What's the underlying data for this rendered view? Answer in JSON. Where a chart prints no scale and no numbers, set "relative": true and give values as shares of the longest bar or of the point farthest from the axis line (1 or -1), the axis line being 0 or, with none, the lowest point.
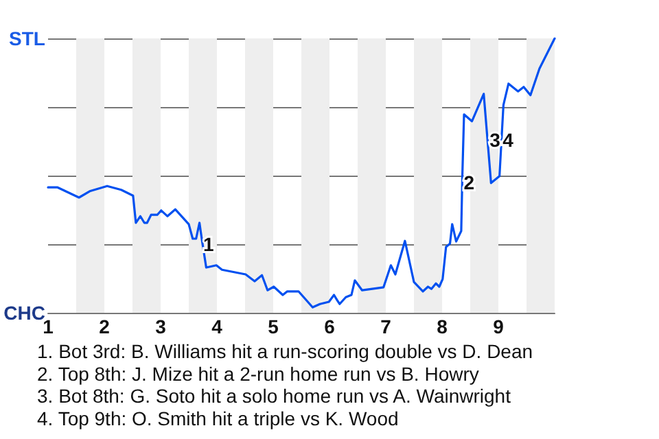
{
  "chart_data": {
    "type": "line",
    "x": [
      1.0,
      1.17,
      1.55,
      1.74,
      2.05,
      2.3,
      2.51,
      2.56,
      2.64,
      2.71,
      2.76,
      2.83,
      2.94,
      3.01,
      3.12,
      3.26,
      3.5,
      3.57,
      3.63,
      3.69,
      3.74,
      3.81,
      3.99,
      4.09,
      4.51,
      4.67,
      4.8,
      4.9,
      5.01,
      5.17,
      5.25,
      5.45,
      5.7,
      5.83,
      5.99,
      6.08,
      6.13,
      6.18,
      6.29,
      6.39,
      6.45,
      6.58,
      6.96,
      7.09,
      7.17,
      7.34,
      7.5,
      7.66,
      7.75,
      7.81,
      7.89,
      7.95,
      8.01,
      8.07,
      8.14,
      8.18,
      8.25,
      8.34,
      8.36,
      8.39,
      8.53,
      8.74,
      8.87,
      9.02,
      9.09,
      9.18,
      9.35,
      9.45,
      9.57,
      9.73,
      10.0
    ],
    "series": [
      {
        "color": "#0050f0",
        "values": [
          0.457,
          0.457,
          0.42,
          0.443,
          0.462,
          0.448,
          0.427,
          0.328,
          0.352,
          0.328,
          0.328,
          0.357,
          0.357,
          0.373,
          0.352,
          0.377,
          0.323,
          0.27,
          0.27,
          0.328,
          0.257,
          0.165,
          0.173,
          0.157,
          0.14,
          0.115,
          0.137,
          0.082,
          0.095,
          0.065,
          0.078,
          0.078,
          0.02,
          0.032,
          0.04,
          0.065,
          0.048,
          0.032,
          0.057,
          0.065,
          0.118,
          0.082,
          0.093,
          0.173,
          0.14,
          0.262,
          0.112,
          0.078,
          0.095,
          0.087,
          0.107,
          0.095,
          0.123,
          0.24,
          0.252,
          0.323,
          0.26,
          0.298,
          0.498,
          0.723,
          0.698,
          0.798,
          0.473,
          0.498,
          0.757,
          0.835,
          0.807,
          0.823,
          0.793,
          0.89,
          1
        ]
      }
    ],
    "relative": true,
    "xlim": [
      1,
      10
    ],
    "xticks": [
      1,
      2,
      3,
      4,
      5,
      6,
      7,
      8,
      9
    ],
    "grid": "y",
    "marker": "none",
    "bands": [
      {
        "axis": "x",
        "from": 1.5,
        "to": 2,
        "color": "#eeeeee"
      },
      {
        "axis": "x",
        "from": 2.5,
        "to": 3,
        "color": "#eeeeee"
      },
      {
        "axis": "x",
        "from": 3.5,
        "to": 4,
        "color": "#eeeeee"
      },
      {
        "axis": "x",
        "from": 4.5,
        "to": 5,
        "color": "#eeeeee"
      },
      {
        "axis": "x",
        "from": 5.5,
        "to": 6,
        "color": "#eeeeee"
      },
      {
        "axis": "x",
        "from": 6.5,
        "to": 7,
        "color": "#eeeeee"
      },
      {
        "axis": "x",
        "from": 7.5,
        "to": 8,
        "color": "#eeeeee"
      },
      {
        "axis": "x",
        "from": 8.5,
        "to": 9,
        "color": "#eeeeee"
      },
      {
        "axis": "x",
        "from": 9.5,
        "to": 10,
        "color": "#eeeeee"
      }
    ],
    "annotations": [
      "STL",
      "CHC",
      {
        "text": "1",
        "x": 3.85,
        "y": 0.25
      },
      {
        "text": "2",
        "x": 8.48,
        "y": 0.475
      },
      {
        "text": "3",
        "x": 8.94,
        "y": 0.63
      },
      {
        "text": "4",
        "x": 9.17,
        "y": 0.63
      },
      "1. Bot 3rd: B. Williams hit a run-scoring double vs D. Dean",
      "2. Top 8th: J. Mize hit a 2-run home run vs B. Howry",
      "3. Bot 8th: G. Soto hit a solo home run vs A. Wainwright",
      "4. Top 9th: O. Smith hit a triple vs K. Wood"
    ]
  }
}
